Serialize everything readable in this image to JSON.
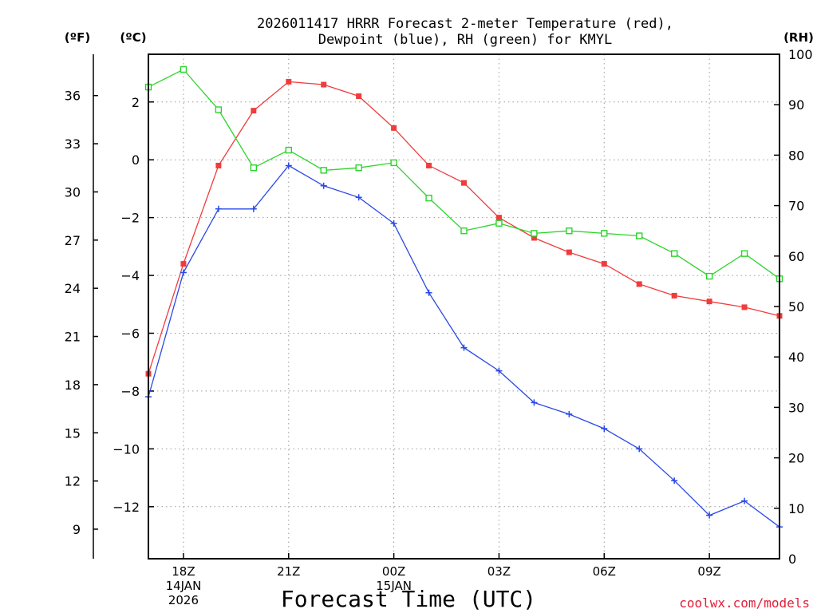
{
  "chart_data": {
    "type": "line",
    "title_lines": [
      "2026011417 HRRR Forecast 2-meter Temperature (red),",
      "Dewpoint (blue), RH (green) for KMYL"
    ],
    "xlabel": "Forecast Time (UTC)",
    "credit": "coolwx.com/models",
    "x_hours": [
      17,
      18,
      19,
      20,
      21,
      22,
      23,
      24,
      25,
      26,
      27,
      28,
      29,
      30,
      31,
      32,
      33,
      34,
      35
    ],
    "xlim": [
      17,
      35
    ],
    "x_ticks": [
      {
        "x": 18,
        "lines": [
          "18Z",
          "14JAN",
          "2026"
        ]
      },
      {
        "x": 21,
        "lines": [
          "21Z"
        ]
      },
      {
        "x": 24,
        "lines": [
          "00Z",
          "15JAN"
        ]
      },
      {
        "x": 27,
        "lines": [
          "03Z"
        ]
      },
      {
        "x": 30,
        "lines": [
          "06Z"
        ]
      },
      {
        "x": 33,
        "lines": [
          "09Z"
        ]
      }
    ],
    "axes": {
      "celsius": {
        "label": "(ºC)",
        "lim": [
          -13.8,
          3.65
        ],
        "ticks": [
          2,
          0,
          -2,
          -4,
          -6,
          -8,
          -10,
          -12
        ],
        "tick_labels": [
          "2",
          "0",
          "−2",
          "−4",
          "−6",
          "−8",
          "−10",
          "−12"
        ]
      },
      "fahrenheit": {
        "label": "(ºF)",
        "ticks": [
          36,
          33,
          30,
          27,
          24,
          21,
          18,
          15,
          12,
          9
        ]
      },
      "rh": {
        "label": "(RH)",
        "lim": [
          0,
          100
        ],
        "ticks": [
          100,
          90,
          80,
          70,
          60,
          50,
          40,
          30,
          20,
          10,
          0
        ]
      }
    },
    "series": [
      {
        "name": "Temperature",
        "units": "C",
        "axis": "celsius",
        "color": "#f03c3c",
        "marker": "filled-square",
        "values": [
          -7.4,
          -3.6,
          -0.2,
          1.7,
          2.7,
          2.6,
          2.2,
          1.1,
          -0.2,
          -0.8,
          -2.0,
          -2.7,
          -3.2,
          -3.6,
          -4.3,
          -4.7,
          -4.9,
          -5.1,
          -5.4
        ]
      },
      {
        "name": "Dewpoint",
        "units": "C",
        "axis": "celsius",
        "color": "#2a49e6",
        "marker": "plus",
        "values": [
          -8.2,
          -3.9,
          -1.7,
          -1.7,
          -0.2,
          -0.9,
          -1.3,
          -2.2,
          -4.6,
          -6.5,
          -7.3,
          -8.4,
          -8.8,
          -9.3,
          -10.0,
          -11.1,
          -12.3,
          -11.8,
          -12.7
        ]
      },
      {
        "name": "RH",
        "units": "%",
        "axis": "rh",
        "color": "#2ad42a",
        "marker": "open-square",
        "values": [
          93.5,
          97,
          89,
          77.5,
          81,
          77,
          77.5,
          78.5,
          71.5,
          65,
          66.5,
          64.5,
          65,
          64.5,
          64,
          60.5,
          56,
          60.5,
          55.5
        ]
      }
    ]
  }
}
